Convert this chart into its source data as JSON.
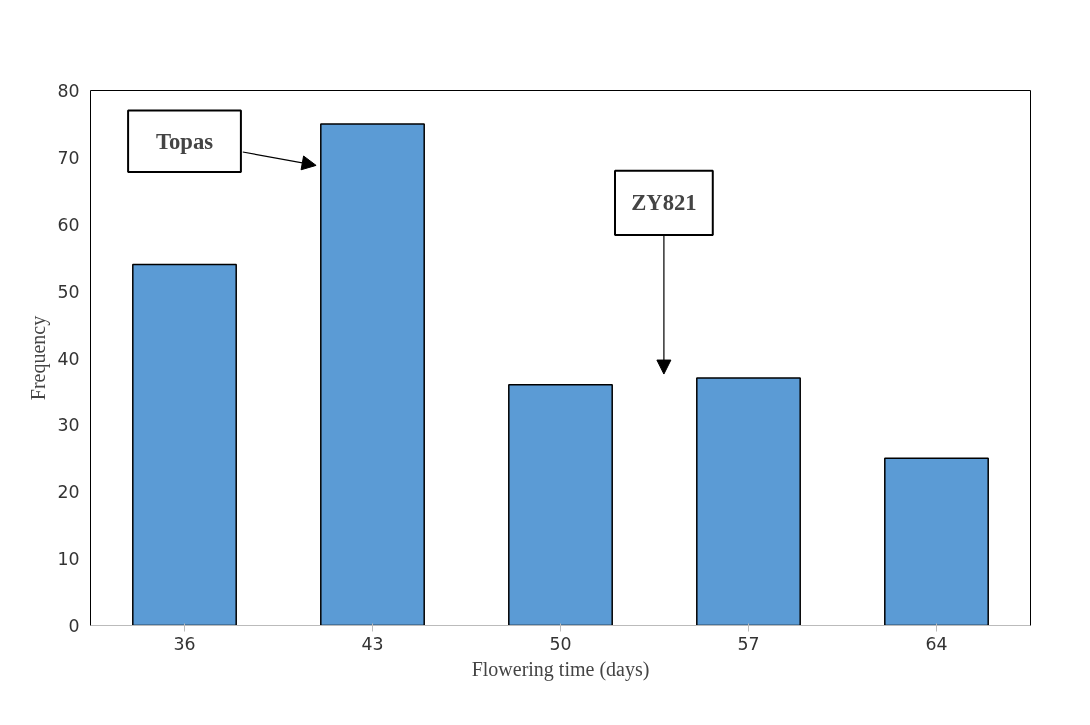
{
  "chart_data": {
    "type": "bar",
    "xlabel": "Flowering time (days)",
    "ylabel": "Frequency",
    "categories": [
      "36",
      "43",
      "50",
      "57",
      "64"
    ],
    "values": [
      54,
      75,
      36,
      37,
      25
    ],
    "color": "#5b9bd5",
    "ylim": [
      0,
      80
    ],
    "yticks": [
      0,
      10,
      20,
      30,
      40,
      50,
      60,
      70,
      80
    ],
    "grid": false,
    "annotations": [
      "Topas",
      "ZY821"
    ]
  }
}
